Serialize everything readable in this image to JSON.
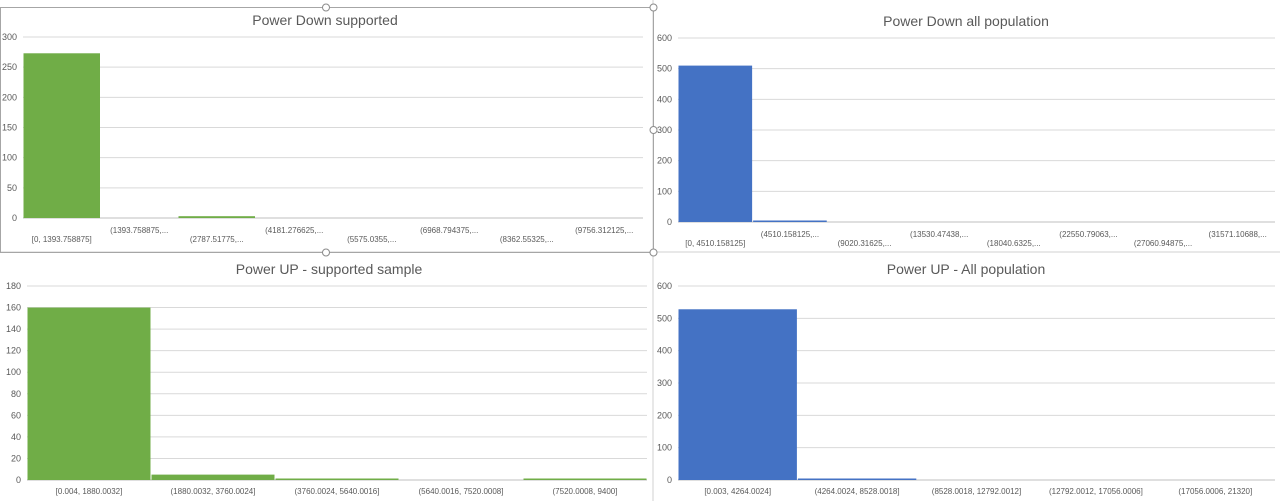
{
  "chart_data": [
    {
      "type": "bar",
      "title": "Power Down supported",
      "color": "#70ad47",
      "ylim": [
        0,
        300
      ],
      "yticks": [
        0,
        50,
        100,
        150,
        200,
        250,
        300
      ],
      "grid": true,
      "categories": [
        "[0, 1393.758875]",
        "(1393.758875,...",
        "(2787.51775,...",
        "(4181.276625,...",
        "(5575.0355,...",
        "(6968.794375,...",
        "(8362.55325,...",
        "(9756.312125,..."
      ],
      "values": [
        273,
        0,
        3,
        0,
        0,
        0,
        0,
        0
      ]
    },
    {
      "type": "bar",
      "title": "Power Down all population",
      "color": "#4472c4",
      "ylim": [
        0,
        600
      ],
      "yticks": [
        0,
        100,
        200,
        300,
        400,
        500,
        600
      ],
      "grid": true,
      "categories": [
        "[0, 4510.158125]",
        "(4510.158125,...",
        "(9020.31625,...",
        "(13530.47438,...",
        "(18040.6325,...",
        "(22550.79063,...",
        "(27060.94875,...",
        "(31571.10688,..."
      ],
      "values": [
        510,
        3,
        0,
        0,
        0,
        0,
        0,
        0
      ]
    },
    {
      "type": "bar",
      "title": "Power UP - supported sample",
      "color": "#70ad47",
      "ylim": [
        0,
        180
      ],
      "yticks": [
        0,
        20,
        40,
        60,
        80,
        100,
        120,
        140,
        160,
        180
      ],
      "grid": true,
      "categories": [
        "[0.004, 1880.0032]",
        "(1880.0032, 3760.0024]",
        "(3760.0024, 5640.0016]",
        "(5640.0016, 7520.0008]",
        "(7520.0008, 9400]"
      ],
      "values": [
        160,
        5,
        1,
        0,
        1
      ]
    },
    {
      "type": "bar",
      "title": "Power UP - All population",
      "color": "#4472c4",
      "ylim": [
        0,
        600
      ],
      "yticks": [
        0,
        100,
        200,
        300,
        400,
        500,
        600
      ],
      "grid": true,
      "categories": [
        "[0.003, 4264.0024]",
        "(4264.0024, 8528.0018]",
        "(8528.0018, 12792.0012]",
        "(12792.0012, 17056.0006]",
        "(17056.0006, 21320]"
      ],
      "values": [
        528,
        3,
        0,
        0,
        0
      ]
    }
  ]
}
